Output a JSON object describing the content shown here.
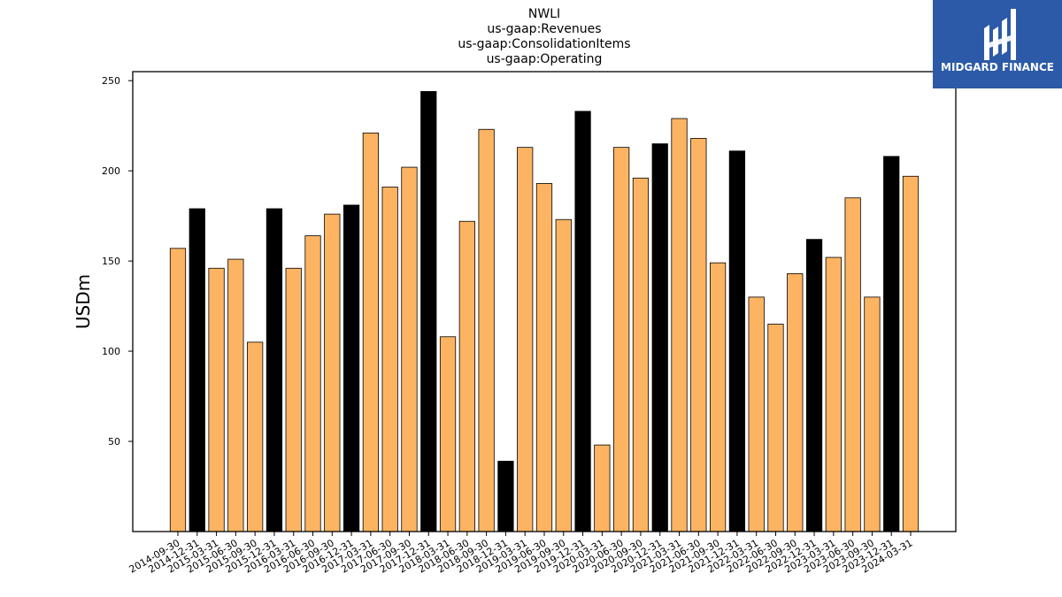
{
  "logo": {
    "text": "MIDGARD FINANCE"
  },
  "colors": {
    "primary": "#fdb462",
    "highlight": "#000000"
  },
  "chart_data": {
    "type": "bar",
    "title": [
      "NWLI",
      "us-gaap:Revenues",
      "us-gaap:ConsolidationItems",
      "us-gaap:Operating"
    ],
    "ylabel": "USDm",
    "xlabel": "",
    "ylim": [
      0,
      255
    ],
    "yticks": [
      50,
      100,
      150,
      200,
      250
    ],
    "grid": false,
    "categories": [
      "2014-09-30",
      "2014-12-31",
      "2015-03-31",
      "2015-06-30",
      "2015-09-30",
      "2015-12-31",
      "2016-03-31",
      "2016-06-30",
      "2016-09-30",
      "2016-12-31",
      "2017-03-31",
      "2017-06-30",
      "2017-09-30",
      "2017-12-31",
      "2018-03-31",
      "2018-06-30",
      "2018-09-30",
      "2018-12-31",
      "2019-03-31",
      "2019-06-30",
      "2019-09-30",
      "2019-12-31",
      "2020-03-31",
      "2020-06-30",
      "2020-09-30",
      "2020-12-31",
      "2021-03-31",
      "2021-06-30",
      "2021-09-30",
      "2021-12-31",
      "2022-03-31",
      "2022-06-30",
      "2022-09-30",
      "2022-12-31",
      "2023-03-31",
      "2023-06-30",
      "2023-09-30",
      "2023-12-31",
      "2024-03-31"
    ],
    "values": [
      157,
      179,
      146,
      151,
      105,
      179,
      146,
      164,
      176,
      181,
      221,
      191,
      202,
      244,
      108,
      172,
      223,
      39,
      213,
      193,
      173,
      233,
      48,
      213,
      196,
      215,
      229,
      218,
      149,
      211,
      130,
      115,
      143,
      162,
      152,
      185,
      130,
      208,
      197
    ],
    "highlight": [
      false,
      true,
      false,
      false,
      false,
      true,
      false,
      false,
      false,
      true,
      false,
      false,
      false,
      true,
      false,
      false,
      false,
      true,
      false,
      false,
      false,
      true,
      false,
      false,
      false,
      true,
      false,
      false,
      false,
      true,
      false,
      false,
      false,
      true,
      false,
      false,
      false,
      true,
      false
    ]
  }
}
